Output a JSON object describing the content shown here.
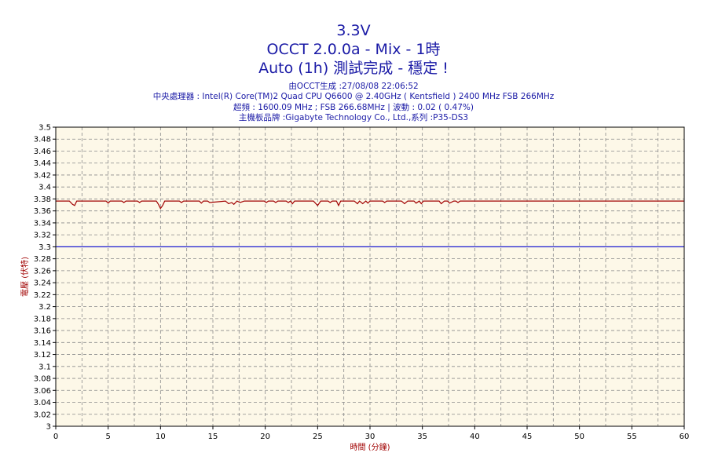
{
  "header": {
    "title": "3.3V",
    "subtitle": "OCCT 2.0.0a - Mix - 1時",
    "status": "Auto (1h) 測試完成 - 穩定 !",
    "generated": "由OCCT生成 :27/08/08 22:06:52",
    "cpu": "中央處理器 : Intel(R) Core(TM)2 Quad CPU Q6600 @ 2.40GHz ( Kentsfield ) 2400 MHz FSB 266MHz",
    "clock": "超頻 : 1600.09 MHz ; FSB 266.68MHz | 波動 : 0.02 ( 0.47%)",
    "motherboard": "主機板品牌 :Gigabyte Technology Co., Ltd.,系列 :P35-DS3"
  },
  "colors": {
    "plot_background": "#fdf8e8",
    "grid": "#8a8a8a",
    "title_text": "#1a1aa6",
    "axis_title_text": "#a00000",
    "measured_line": "#a00000",
    "reference_line": "#1a1ad0"
  },
  "chart_data": {
    "type": "line",
    "xlabel": "時間 (分鐘)",
    "ylabel": "電壓 (伏特)",
    "xlim": [
      0,
      60
    ],
    "ylim": [
      3,
      3.5
    ],
    "x_ticks": [
      0,
      5,
      10,
      15,
      20,
      25,
      30,
      35,
      40,
      45,
      50,
      55,
      60
    ],
    "y_ticks": [
      "3",
      "3.02",
      "3.04",
      "3.06",
      "3.08",
      "3.1",
      "3.12",
      "3.14",
      "3.16",
      "3.18",
      "3.2",
      "3.22",
      "3.24",
      "3.26",
      "3.28",
      "3.3",
      "3.32",
      "3.34",
      "3.36",
      "3.38",
      "3.4",
      "3.42",
      "3.44",
      "3.46",
      "3.48",
      "3.5"
    ],
    "grid": true,
    "legend": "none",
    "series": [
      {
        "role": "measured",
        "color": "#a00000",
        "x": [
          0,
          1.3,
          1.6,
          1.8,
          2.0,
          4.8,
          5.0,
          5.2,
          6.3,
          6.5,
          6.7,
          7.8,
          8.0,
          8.2,
          9.6,
          9.8,
          10.0,
          10.2,
          10.4,
          11.8,
          12.0,
          12.2,
          13.7,
          13.9,
          14.1,
          14.5,
          14.7,
          16.2,
          16.5,
          16.8,
          17.0,
          17.3,
          17.6,
          18.0,
          18.3,
          19.9,
          20.1,
          20.3,
          20.8,
          21.0,
          21.2,
          22.0,
          22.2,
          22.4,
          22.6,
          22.8,
          23.0,
          24.6,
          25.0,
          25.3,
          25.5,
          26.0,
          26.2,
          26.4,
          26.8,
          27.0,
          27.2,
          28.5,
          28.8,
          29.0,
          29.3,
          29.6,
          29.8,
          30.0,
          30.3,
          31.2,
          31.4,
          31.6,
          33.0,
          33.3,
          33.6,
          34.2,
          34.4,
          34.7,
          34.9,
          35.1,
          35.4,
          36.6,
          36.8,
          37.1,
          37.4,
          37.6,
          38.0,
          38.2,
          38.4,
          38.6,
          60
        ],
        "y": [
          3.3765,
          3.3765,
          3.371,
          3.369,
          3.3765,
          3.3765,
          3.373,
          3.3765,
          3.3765,
          3.374,
          3.3765,
          3.3765,
          3.374,
          3.3765,
          3.3765,
          3.371,
          3.364,
          3.369,
          3.3765,
          3.3765,
          3.374,
          3.3765,
          3.3765,
          3.373,
          3.3765,
          3.3765,
          3.374,
          3.3765,
          3.372,
          3.374,
          3.371,
          3.3765,
          3.374,
          3.3765,
          3.3765,
          3.3765,
          3.374,
          3.3765,
          3.3765,
          3.374,
          3.3765,
          3.3765,
          3.374,
          3.3765,
          3.372,
          3.3765,
          3.3765,
          3.3765,
          3.369,
          3.3765,
          3.3765,
          3.3765,
          3.374,
          3.3765,
          3.3765,
          3.369,
          3.3765,
          3.3765,
          3.372,
          3.3765,
          3.372,
          3.3765,
          3.373,
          3.3765,
          3.3765,
          3.3765,
          3.374,
          3.3765,
          3.3765,
          3.372,
          3.3765,
          3.3765,
          3.373,
          3.3765,
          3.372,
          3.3765,
          3.3765,
          3.3765,
          3.372,
          3.3765,
          3.3765,
          3.373,
          3.3765,
          3.3765,
          3.374,
          3.3765,
          3.3765
        ]
      },
      {
        "role": "reference",
        "color": "#1a1ad0",
        "x": [
          0,
          60
        ],
        "y": [
          3.3,
          3.3
        ]
      }
    ]
  }
}
